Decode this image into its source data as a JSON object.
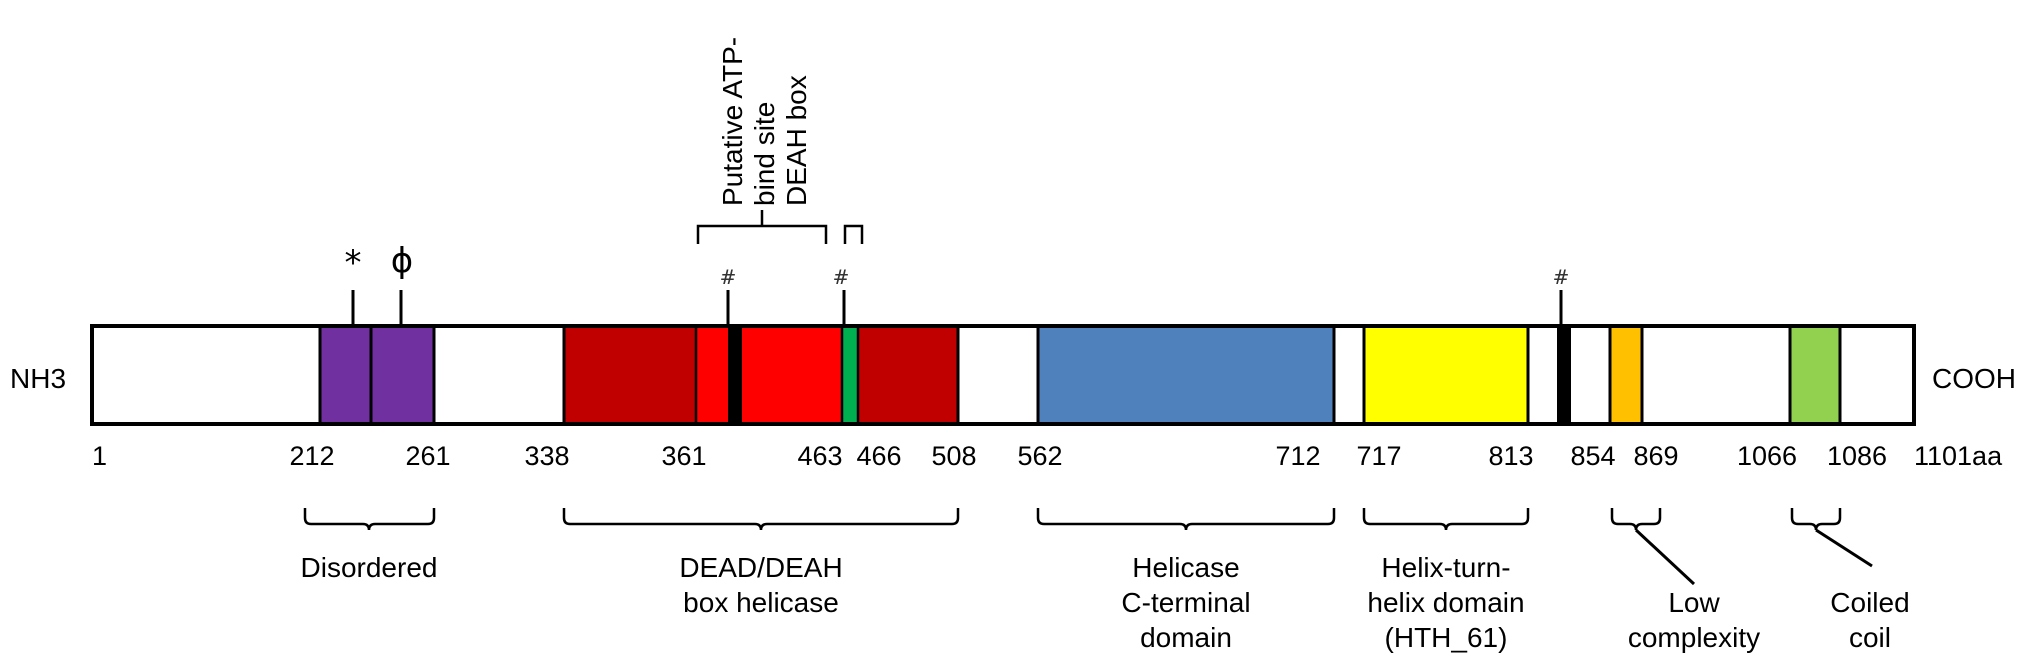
{
  "terminals": {
    "left": "NH3",
    "right": "COOH"
  },
  "positions": [
    "1",
    "212",
    "261",
    "338",
    "361",
    "463",
    "466",
    "508",
    "562",
    "712",
    "717",
    "813",
    "854",
    "869",
    "1066",
    "1086",
    "1101aa"
  ],
  "colors": {
    "disordered": "#7030a0",
    "dead_dark": "#c00000",
    "dead_light": "#ff0000",
    "black_motif": "#000000",
    "green_motif": "#00b050",
    "helicase_c": "#4f81bd",
    "hth": "#ffff00",
    "low_complexity": "#ffc000",
    "coiled_coil": "#92d050"
  },
  "site_markers": {
    "asterisk": "*",
    "phi": "ϕ",
    "hash_1": "#",
    "hash_2": "#",
    "hash_3": "#"
  },
  "top_annotation": {
    "line1": "Putative ATP-",
    "line2": "bind site",
    "line3": "DEAH box"
  },
  "domain_labels": {
    "disordered": [
      "Disordered"
    ],
    "dead_deah": [
      "DEAD/DEAH",
      "box helicase"
    ],
    "helicase_c": [
      "Helicase",
      "C-terminal",
      "domain"
    ],
    "hth": [
      "Helix-turn-",
      "helix domain",
      "(HTH_61)"
    ],
    "low_complexity": [
      "Low",
      "complexity"
    ],
    "coiled_coil": [
      "Coiled",
      "coil"
    ]
  }
}
